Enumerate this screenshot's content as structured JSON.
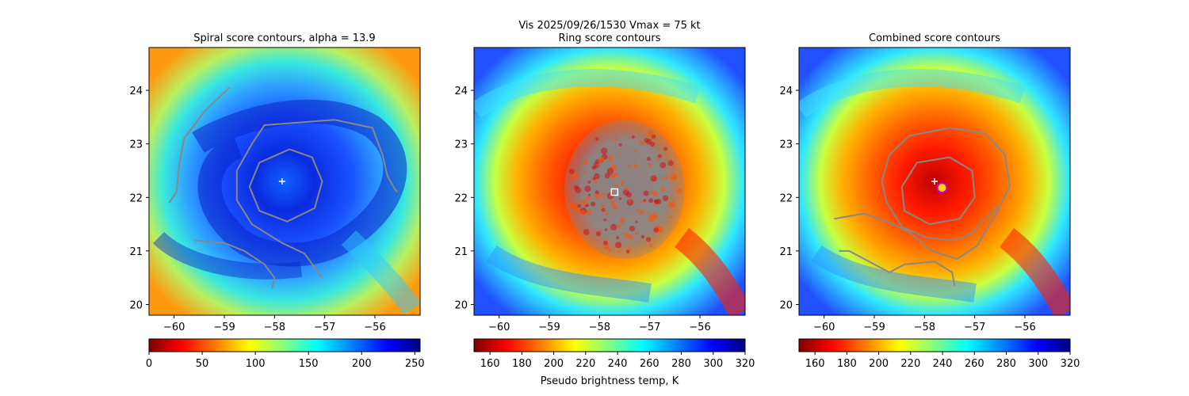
{
  "suptitle": "Vis  2025/09/26/1530    Vmax = 75 kt",
  "colors": {
    "contour": "#888888",
    "center_cross": "#ffffff",
    "ring_center_box": "#ffffff",
    "combined_center_ring": "#cc00cc",
    "combined_center_fill": "#ffd400"
  },
  "chart_data": [
    {
      "type": "heatmap",
      "title": "Spiral score contours, alpha = 13.9",
      "xlabel": "",
      "ylabel": "",
      "xlim": [
        -60.5,
        -55.1
      ],
      "ylim": [
        19.8,
        24.8
      ],
      "xticks": [
        -60,
        -59,
        -58,
        -57,
        -56
      ],
      "yticks": [
        20,
        21,
        22,
        23,
        24
      ],
      "xtick_labels": [
        "−60",
        "−59",
        "−58",
        "−57",
        "−56"
      ],
      "ytick_labels": [
        "20",
        "21",
        "22",
        "23",
        "24"
      ],
      "colormap": "jet_r",
      "colorbar": {
        "min": 0,
        "max": 255,
        "ticks": [
          0,
          50,
          100,
          150,
          200,
          250
        ],
        "label": ""
      },
      "storm_center": [
        -57.7,
        22.15
      ],
      "markers": [
        {
          "kind": "plus",
          "lon": -57.85,
          "lat": 22.3
        }
      ],
      "contours": [
        [
          [
            -57.7,
            22.9
          ],
          [
            -57.25,
            22.75
          ],
          [
            -57.05,
            22.3
          ],
          [
            -57.2,
            21.8
          ],
          [
            -57.75,
            21.55
          ],
          [
            -58.3,
            21.75
          ],
          [
            -58.5,
            22.2
          ],
          [
            -58.3,
            22.65
          ],
          [
            -57.7,
            22.9
          ]
        ],
        [
          [
            -57.5,
            23.4
          ],
          [
            -56.8,
            23.45
          ],
          [
            -56.05,
            23.3
          ],
          [
            -55.85,
            22.8
          ],
          [
            -55.75,
            22.4
          ],
          [
            -55.6,
            22.15
          ],
          [
            -55.55,
            22.1
          ]
        ],
        [
          [
            -57.5,
            23.4
          ],
          [
            -58.2,
            23.35
          ],
          [
            -58.45,
            23.0
          ],
          [
            -58.75,
            22.5
          ],
          [
            -58.75,
            21.95
          ],
          [
            -58.45,
            21.5
          ],
          [
            -57.85,
            21.15
          ],
          [
            -57.4,
            20.95
          ],
          [
            -57.05,
            20.5
          ]
        ],
        [
          [
            -58.9,
            24.05
          ],
          [
            -59.4,
            23.6
          ],
          [
            -59.8,
            23.1
          ],
          [
            -59.9,
            22.6
          ],
          [
            -59.95,
            22.1
          ],
          [
            -60.1,
            21.9
          ]
        ],
        [
          [
            -59.6,
            21.2
          ],
          [
            -59.0,
            21.15
          ],
          [
            -58.6,
            21.0
          ],
          [
            -58.2,
            20.75
          ],
          [
            -58.0,
            20.5
          ],
          [
            -58.05,
            20.3
          ]
        ]
      ]
    },
    {
      "type": "heatmap",
      "title": "Ring score contours",
      "xlabel": "Pseudo brightness temp, K",
      "ylabel": "",
      "xlim": [
        -60.5,
        -55.1
      ],
      "ylim": [
        19.8,
        24.8
      ],
      "xticks": [
        -60,
        -59,
        -58,
        -57,
        -56
      ],
      "yticks": [
        20,
        21,
        22,
        23,
        24
      ],
      "xtick_labels": [
        "−60",
        "−59",
        "−58",
        "−57",
        "−56"
      ],
      "ytick_labels": [
        "20",
        "21",
        "22",
        "23",
        "24"
      ],
      "colormap": "jet_r",
      "colorbar": {
        "min": 150,
        "max": 320,
        "ticks": [
          160,
          180,
          200,
          220,
          240,
          260,
          280,
          300,
          320
        ],
        "label": "Pseudo brightness temp, K"
      },
      "storm_center": [
        -57.7,
        22.15
      ],
      "markers": [
        {
          "kind": "square",
          "lon": -57.7,
          "lat": 22.1
        }
      ],
      "ring_region": {
        "lon": -57.5,
        "lat": 22.15,
        "rx_deg": 1.2,
        "ry_deg": 1.3
      }
    },
    {
      "type": "heatmap",
      "title": "Combined score contours",
      "xlabel": "",
      "ylabel": "",
      "xlim": [
        -60.5,
        -55.1
      ],
      "ylim": [
        19.8,
        24.8
      ],
      "xticks": [
        -60,
        -59,
        -58,
        -57,
        -56
      ],
      "yticks": [
        20,
        21,
        22,
        23,
        24
      ],
      "xtick_labels": [
        "−60",
        "−59",
        "−58",
        "−57",
        "−56"
      ],
      "ytick_labels": [
        "20",
        "21",
        "22",
        "23",
        "24"
      ],
      "colormap": "jet_r",
      "colorbar": {
        "min": 150,
        "max": 320,
        "ticks": [
          160,
          180,
          200,
          220,
          240,
          260,
          280,
          300,
          320
        ],
        "label": ""
      },
      "storm_center": [
        -57.7,
        22.15
      ],
      "markers": [
        {
          "kind": "plus",
          "lon": -57.8,
          "lat": 22.3
        },
        {
          "kind": "ring",
          "lon": -57.65,
          "lat": 22.18
        }
      ],
      "contours": [
        [
          [
            -57.5,
            22.75
          ],
          [
            -57.05,
            22.5
          ],
          [
            -57.0,
            22.0
          ],
          [
            -57.3,
            21.6
          ],
          [
            -57.9,
            21.5
          ],
          [
            -58.4,
            21.75
          ],
          [
            -58.45,
            22.2
          ],
          [
            -58.15,
            22.65
          ],
          [
            -57.5,
            22.75
          ]
        ],
        [
          [
            -57.5,
            23.3
          ],
          [
            -56.8,
            23.2
          ],
          [
            -56.4,
            22.8
          ],
          [
            -56.3,
            22.2
          ],
          [
            -56.5,
            21.85
          ],
          [
            -56.85,
            21.55
          ],
          [
            -57.1,
            21.3
          ],
          [
            -57.45,
            21.2
          ],
          [
            -57.95,
            21.25
          ],
          [
            -58.45,
            21.45
          ],
          [
            -58.75,
            21.9
          ],
          [
            -58.85,
            22.3
          ],
          [
            -58.7,
            22.8
          ],
          [
            -58.3,
            23.15
          ],
          [
            -57.5,
            23.3
          ]
        ],
        [
          [
            -56.5,
            21.8
          ],
          [
            -56.8,
            21.35
          ],
          [
            -56.95,
            21.1
          ],
          [
            -57.35,
            20.85
          ],
          [
            -57.85,
            21.0
          ],
          [
            -58.3,
            21.35
          ],
          [
            -58.75,
            21.55
          ],
          [
            -59.2,
            21.7
          ],
          [
            -59.5,
            21.65
          ],
          [
            -59.8,
            21.6
          ]
        ],
        [
          [
            -57.4,
            20.35
          ],
          [
            -57.45,
            20.6
          ],
          [
            -57.8,
            20.8
          ],
          [
            -58.4,
            20.75
          ],
          [
            -58.7,
            20.6
          ],
          [
            -59.1,
            20.8
          ],
          [
            -59.5,
            21.0
          ],
          [
            -59.7,
            21.0
          ]
        ]
      ]
    }
  ]
}
